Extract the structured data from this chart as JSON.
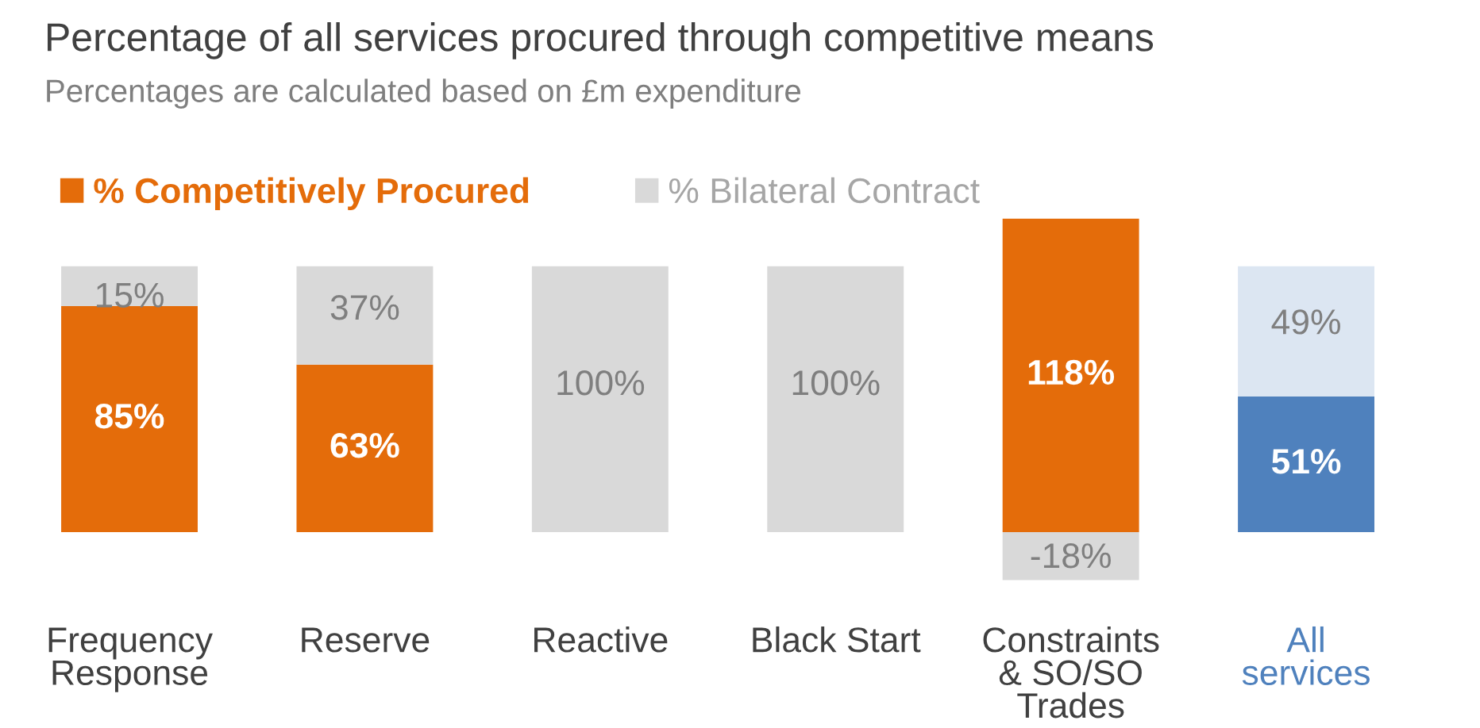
{
  "chart_data": {
    "type": "bar",
    "stacked": true,
    "title": "Percentage of all services procured through competitive means",
    "subtitle": "Percentages are calculated based on £m expenditure",
    "categories": [
      "Frequency\nResponse",
      "Reserve",
      "Reactive",
      "Black Start",
      "Constraints\n& SO/SO\nTrades",
      "All\nservices"
    ],
    "series": [
      {
        "name": "% Competitively Procured",
        "color": "#e46c0a",
        "colors": [
          "#e46c0a",
          "#e46c0a",
          "#e46c0a",
          "#e46c0a",
          "#e46c0a",
          "#4f81bd"
        ],
        "values": [
          85,
          63,
          0,
          0,
          118,
          51
        ],
        "value_labels": [
          "85%",
          "63%",
          null,
          null,
          "118%",
          "51%"
        ]
      },
      {
        "name": "% Bilateral Contract",
        "color": "#d9d9d9",
        "colors": [
          "#d9d9d9",
          "#d9d9d9",
          "#d9d9d9",
          "#d9d9d9",
          "#d9d9d9",
          "#dce6f2"
        ],
        "values": [
          15,
          37,
          100,
          100,
          -18,
          49
        ],
        "value_labels": [
          "15%",
          "37%",
          "100%",
          "100%",
          "-18%",
          "49%"
        ]
      }
    ],
    "legend": "top left",
    "grid": false
  }
}
